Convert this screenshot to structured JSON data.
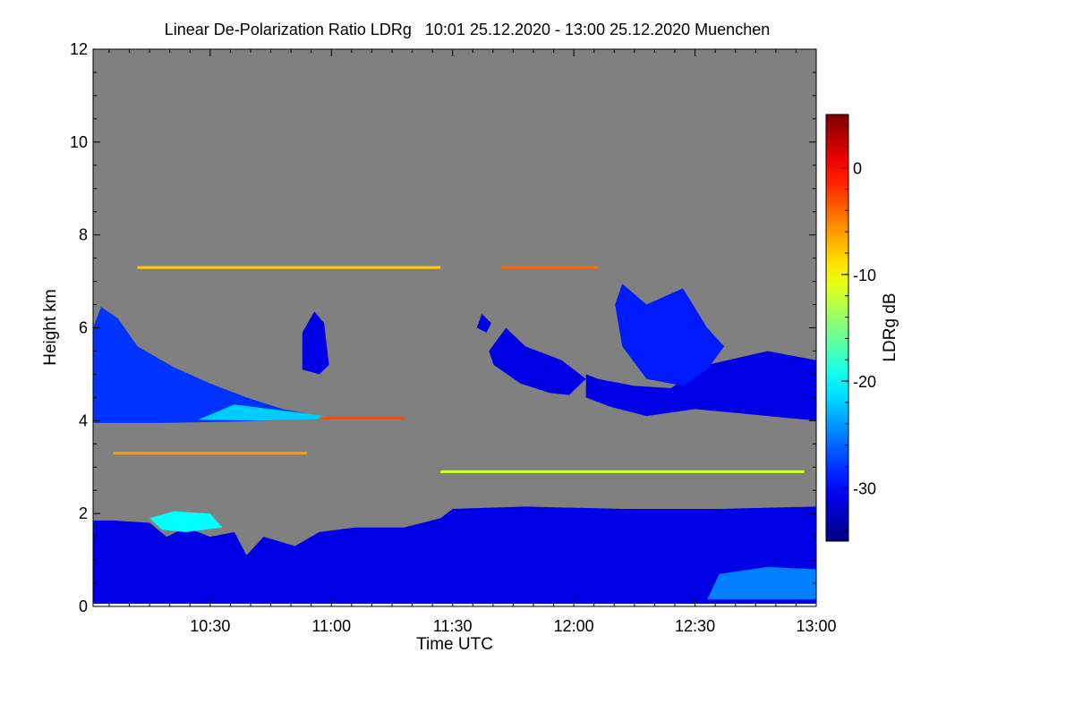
{
  "chart_data": {
    "type": "heatmap",
    "title": "Linear De-Polarization Ratio LDRg   10:01 25.12.2020 - 13:00 25.12.2020 Muenchen",
    "xlabel": "Time UTC",
    "ylabel": "Height km",
    "xlim_hours": [
      10.017,
      13.0
    ],
    "ylim": [
      0,
      12
    ],
    "x_ticks": [
      {
        "v": 10.5,
        "label": "10:30"
      },
      {
        "v": 11.0,
        "label": "11:00"
      },
      {
        "v": 11.5,
        "label": "11:30"
      },
      {
        "v": 12.0,
        "label": "12:00"
      },
      {
        "v": 12.5,
        "label": "12:30"
      },
      {
        "v": 13.0,
        "label": "13:00"
      }
    ],
    "y_ticks": [
      {
        "v": 0,
        "label": "0"
      },
      {
        "v": 2,
        "label": "2"
      },
      {
        "v": 4,
        "label": "4"
      },
      {
        "v": 6,
        "label": "6"
      },
      {
        "v": 8,
        "label": "8"
      },
      {
        "v": 10,
        "label": "10"
      },
      {
        "v": 12,
        "label": "12"
      }
    ],
    "colorbar": {
      "label": "LDRg dB",
      "range": [
        -35,
        5
      ],
      "colormap": "jet",
      "ticks": [
        {
          "v": 0,
          "label": "0"
        },
        {
          "v": -10,
          "label": "-10"
        },
        {
          "v": -20,
          "label": "-20"
        },
        {
          "v": -30,
          "label": "-30"
        }
      ]
    },
    "background_color": "#808080",
    "regions": [
      {
        "name": "boundary-layer",
        "ldr": -31,
        "points": [
          [
            10.017,
            0
          ],
          [
            10.017,
            1.85
          ],
          [
            10.1,
            1.85
          ],
          [
            10.25,
            1.8
          ],
          [
            10.32,
            1.5
          ],
          [
            10.4,
            1.7
          ],
          [
            10.5,
            1.5
          ],
          [
            10.6,
            1.6
          ],
          [
            10.65,
            1.1
          ],
          [
            10.72,
            1.5
          ],
          [
            10.85,
            1.3
          ],
          [
            10.95,
            1.6
          ],
          [
            11.1,
            1.7
          ],
          [
            11.3,
            1.7
          ],
          [
            11.45,
            1.9
          ],
          [
            11.5,
            2.1
          ],
          [
            11.8,
            2.15
          ],
          [
            12.2,
            2.1
          ],
          [
            12.6,
            2.1
          ],
          [
            13.0,
            2.15
          ],
          [
            13.0,
            0
          ]
        ]
      },
      {
        "name": "boundary-layer-bright-patch",
        "ldr": -25,
        "points": [
          [
            12.55,
            0.15
          ],
          [
            12.6,
            0.7
          ],
          [
            12.8,
            0.85
          ],
          [
            13.0,
            0.8
          ],
          [
            13.0,
            0.15
          ]
        ]
      },
      {
        "name": "boundary-layer-speckle-band",
        "ldr": -20,
        "points": [
          [
            10.25,
            1.9
          ],
          [
            10.35,
            2.05
          ],
          [
            10.5,
            2.0
          ],
          [
            10.55,
            1.7
          ],
          [
            10.4,
            1.6
          ],
          [
            10.3,
            1.65
          ]
        ]
      },
      {
        "name": "left-upper-cloud",
        "ldr": -28,
        "points": [
          [
            10.017,
            3.95
          ],
          [
            10.017,
            6.0
          ],
          [
            10.05,
            6.45
          ],
          [
            10.12,
            6.2
          ],
          [
            10.2,
            5.6
          ],
          [
            10.35,
            5.15
          ],
          [
            10.5,
            4.8
          ],
          [
            10.65,
            4.5
          ],
          [
            10.8,
            4.25
          ],
          [
            10.95,
            4.1
          ],
          [
            11.0,
            4.05
          ],
          [
            10.6,
            3.98
          ],
          [
            10.3,
            3.95
          ]
        ]
      },
      {
        "name": "left-cloud-base-cyan",
        "ldr": -22,
        "points": [
          [
            10.45,
            4.02
          ],
          [
            10.6,
            4.35
          ],
          [
            10.75,
            4.25
          ],
          [
            10.95,
            4.12
          ],
          [
            11.0,
            4.04
          ],
          [
            10.7,
            4.0
          ]
        ]
      },
      {
        "name": "isolated-cloud-1100",
        "ldr": -31,
        "points": [
          [
            10.88,
            5.1
          ],
          [
            10.88,
            5.9
          ],
          [
            10.93,
            6.35
          ],
          [
            10.97,
            6.1
          ],
          [
            10.99,
            5.2
          ],
          [
            10.95,
            5.0
          ]
        ]
      },
      {
        "name": "cloud-1140",
        "ldr": -31,
        "points": [
          [
            11.65,
            5.5
          ],
          [
            11.72,
            6.0
          ],
          [
            11.8,
            5.6
          ],
          [
            11.95,
            5.3
          ],
          [
            12.05,
            4.9
          ],
          [
            11.98,
            4.55
          ],
          [
            11.9,
            4.6
          ],
          [
            11.78,
            4.8
          ],
          [
            11.67,
            5.2
          ]
        ]
      },
      {
        "name": "right-cloud-band",
        "ldr": -31,
        "points": [
          [
            12.05,
            5.0
          ],
          [
            12.1,
            4.9
          ],
          [
            12.25,
            4.75
          ],
          [
            12.4,
            4.7
          ],
          [
            12.55,
            5.2
          ],
          [
            12.8,
            5.5
          ],
          [
            13.0,
            5.3
          ],
          [
            13.0,
            4.0
          ],
          [
            12.8,
            4.1
          ],
          [
            12.5,
            4.25
          ],
          [
            12.3,
            4.1
          ],
          [
            12.15,
            4.3
          ],
          [
            12.05,
            4.5
          ]
        ]
      },
      {
        "name": "right-upper-cloud",
        "ldr": -29,
        "points": [
          [
            12.17,
            6.5
          ],
          [
            12.2,
            6.95
          ],
          [
            12.3,
            6.5
          ],
          [
            12.45,
            6.85
          ],
          [
            12.55,
            6.0
          ],
          [
            12.62,
            5.6
          ],
          [
            12.55,
            5.1
          ],
          [
            12.45,
            4.75
          ],
          [
            12.3,
            4.9
          ],
          [
            12.2,
            5.6
          ]
        ]
      },
      {
        "name": "small-cloud-1133",
        "ldr": -31,
        "points": [
          [
            11.6,
            6.0
          ],
          [
            11.62,
            6.3
          ],
          [
            11.66,
            6.1
          ],
          [
            11.64,
            5.9
          ]
        ]
      },
      {
        "name": "thin-layer-7.3km",
        "ldr": -8,
        "points": [
          [
            10.2,
            7.27
          ],
          [
            10.2,
            7.33
          ],
          [
            11.45,
            7.33
          ],
          [
            11.45,
            7.27
          ]
        ]
      },
      {
        "name": "thin-layer-7.3km-east",
        "ldr": -4,
        "points": [
          [
            11.7,
            7.27
          ],
          [
            11.7,
            7.33
          ],
          [
            12.1,
            7.33
          ],
          [
            12.1,
            7.27
          ]
        ]
      },
      {
        "name": "thin-layer-3.3km",
        "ldr": -6,
        "points": [
          [
            10.1,
            3.27
          ],
          [
            10.1,
            3.33
          ],
          [
            10.9,
            3.33
          ],
          [
            10.9,
            3.27
          ]
        ]
      },
      {
        "name": "thin-layer-4.05km",
        "ldr": -3,
        "points": [
          [
            10.95,
            4.03
          ],
          [
            10.95,
            4.08
          ],
          [
            11.3,
            4.08
          ],
          [
            11.3,
            4.03
          ]
        ]
      },
      {
        "name": "thin-layer-2.9km",
        "ldr": -12,
        "points": [
          [
            11.45,
            2.87
          ],
          [
            11.45,
            2.93
          ],
          [
            12.95,
            2.93
          ],
          [
            12.95,
            2.87
          ]
        ]
      }
    ]
  }
}
